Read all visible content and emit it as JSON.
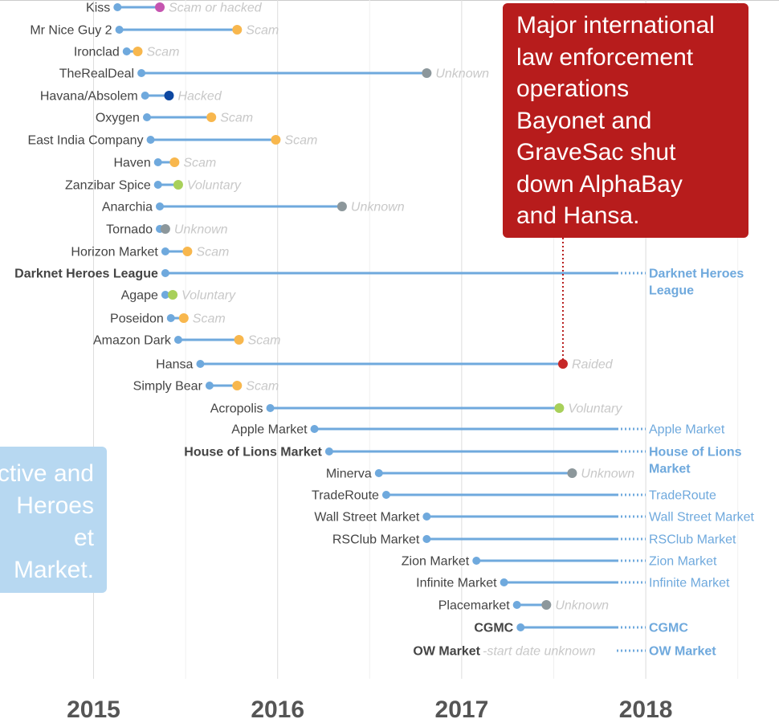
{
  "chart_data": {
    "type": "timeline",
    "title": "",
    "x_axis": {
      "ticks": [
        "2015",
        "2016",
        "2017",
        "2018"
      ],
      "range": [
        2014.5,
        2018.7
      ]
    },
    "status_colors": {
      "Scam": "#f8b74d",
      "Scam or hacked": "#c555b0",
      "Unknown": "#8c979b",
      "Hacked": "#0d47a1",
      "Voluntary": "#a8d05a",
      "Raided": "#c62828",
      "Active": "#6fa9dd"
    },
    "markets": [
      {
        "name": "Kiss",
        "start": 2015.13,
        "end": 2015.36,
        "status": "Scam or hacked"
      },
      {
        "name": "Mr Nice Guy 2",
        "start": 2015.14,
        "end": 2015.78,
        "status": "Scam"
      },
      {
        "name": "Ironclad",
        "start": 2015.18,
        "end": 2015.24,
        "status": "Scam"
      },
      {
        "name": "TheRealDeal",
        "start": 2015.26,
        "end": 2016.81,
        "status": "Unknown"
      },
      {
        "name": "Havana/Absolem",
        "start": 2015.28,
        "end": 2015.41,
        "status": "Hacked",
        "status_label": "Hacked"
      },
      {
        "name": "Oxygen",
        "start": 2015.29,
        "end": 2015.64,
        "status": "Scam"
      },
      {
        "name": "East India Company",
        "start": 2015.31,
        "end": 2015.99,
        "status": "Scam"
      },
      {
        "name": "Haven",
        "start": 2015.35,
        "end": 2015.44,
        "status": "Scam"
      },
      {
        "name": "Zanzibar Spice",
        "start": 2015.35,
        "end": 2015.46,
        "status": "Voluntary"
      },
      {
        "name": "Anarchia",
        "start": 2015.36,
        "end": 2016.35,
        "status": "Unknown"
      },
      {
        "name": "Tornado",
        "start": 2015.36,
        "end": 2015.39,
        "status": "Unknown"
      },
      {
        "name": "Horizon Market",
        "start": 2015.39,
        "end": 2015.51,
        "status": "Scam"
      },
      {
        "name": "Darknet Heroes League",
        "start": 2015.39,
        "status": "Active",
        "bold": true,
        "active_label": [
          "Darknet Heroes",
          "League"
        ]
      },
      {
        "name": "Agape",
        "start": 2015.39,
        "end": 2015.43,
        "status": "Voluntary"
      },
      {
        "name": "Poseidon",
        "start": 2015.42,
        "end": 2015.49,
        "status": "Scam"
      },
      {
        "name": "Amazon Dark",
        "start": 2015.46,
        "end": 2015.79,
        "status": "Scam"
      },
      {
        "name": "Hansa",
        "start": 2015.58,
        "end": 2017.55,
        "status": "Raided"
      },
      {
        "name": "Simply Bear",
        "start": 2015.63,
        "end": 2015.78,
        "status": "Scam"
      },
      {
        "name": "Acropolis",
        "start": 2015.96,
        "end": 2017.53,
        "status": "Voluntary"
      },
      {
        "name": "Apple Market",
        "start": 2016.2,
        "status": "Active",
        "active_label": [
          "Apple Market"
        ]
      },
      {
        "name": "House of Lions Market",
        "start": 2016.28,
        "status": "Active",
        "bold": true,
        "active_label": [
          "House of Lions",
          "Market"
        ]
      },
      {
        "name": "Minerva",
        "start": 2016.55,
        "end": 2017.6,
        "status": "Unknown"
      },
      {
        "name": "TradeRoute",
        "start": 2016.59,
        "status": "Active",
        "active_label": [
          "TradeRoute"
        ]
      },
      {
        "name": "Wall Street Market",
        "start": 2016.81,
        "status": "Active",
        "active_label": [
          "Wall Street Market"
        ]
      },
      {
        "name": "RSClub Market",
        "start": 2016.81,
        "status": "Active",
        "active_label": [
          "RSClub Market"
        ]
      },
      {
        "name": "Zion Market",
        "start": 2017.08,
        "status": "Active",
        "active_label": [
          "Zion Market"
        ]
      },
      {
        "name": "Infinite Market",
        "start": 2017.23,
        "status": "Active",
        "active_label": [
          "Infinite Market"
        ]
      },
      {
        "name": "Placemarket",
        "start": 2017.3,
        "end": 2017.46,
        "status": "Unknown"
      },
      {
        "name": "CGMC",
        "start": 2017.32,
        "status": "Active",
        "bold": true,
        "active_label": [
          "CGMC"
        ]
      },
      {
        "name": "OW Market",
        "status": "Active",
        "bold": true,
        "note": "-start date unknown",
        "active_label": [
          "OW Market"
        ]
      }
    ],
    "annotations": [
      {
        "type": "callout",
        "lines": [
          "Major international",
          "law enforcement",
          "operations",
          "Bayonet and",
          "GraveSac shut",
          "down AlphaBay",
          "and Hansa."
        ],
        "x": 2017.55
      },
      {
        "type": "callout",
        "lines": [
          "ctive and",
          "Heroes",
          "et",
          "Market."
        ]
      }
    ]
  }
}
